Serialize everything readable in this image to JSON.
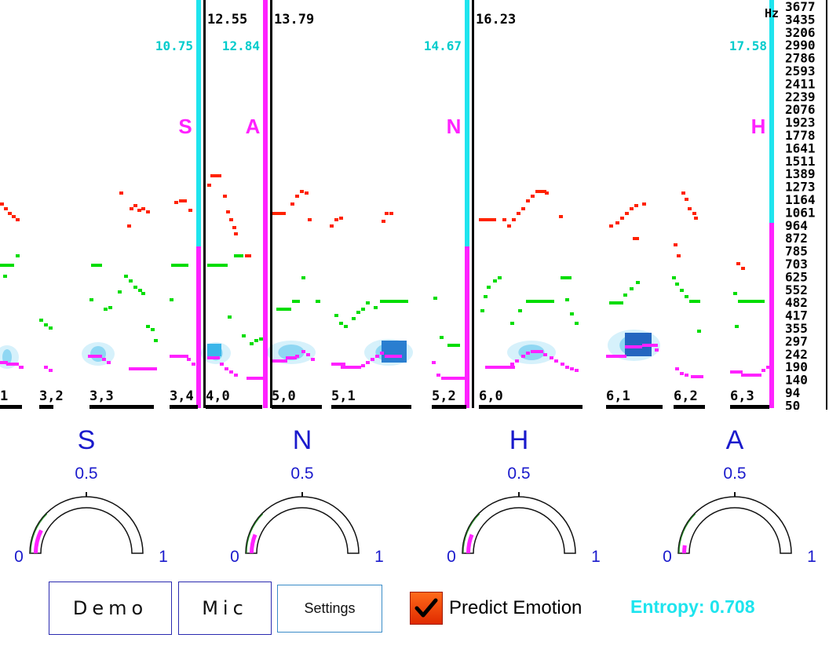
{
  "spectrogram": {
    "hz_label": "Hz",
    "freq_ticks": [
      "3677",
      "3435",
      "3206",
      "2990",
      "2786",
      "2593",
      "2411",
      "2239",
      "2076",
      "1923",
      "1778",
      "1641",
      "1511",
      "1389",
      "1273",
      "1164",
      "1061",
      "964",
      "872",
      "785",
      "703",
      "625",
      "552",
      "482",
      "417",
      "355",
      "297",
      "242",
      "190",
      "140",
      "94",
      "50"
    ],
    "time_markers_black": [
      "12.55",
      "13.79",
      "16.23"
    ],
    "time_markers_cyan": [
      "10.75",
      "12.84",
      "14.67",
      "17.58"
    ],
    "segment_emotions": [
      "S",
      "A",
      "N",
      "H"
    ],
    "syllable_labels": [
      "1",
      "3,2",
      "3,3",
      "3,4",
      "4,0",
      "5,0",
      "5,1",
      "5,2",
      "6,0",
      "6,1",
      "6,2",
      "6,3"
    ],
    "colors": {
      "formant_high": "#ff2200",
      "formant_mid": "#00dd00",
      "pitch": "#ff22ff",
      "cyan": "#00cccc",
      "energy": "#33b8ea"
    }
  },
  "gauges": [
    {
      "label": "S",
      "mid": "0.5",
      "min": "0",
      "max": "1",
      "value": 0.15
    },
    {
      "label": "N",
      "mid": "0.5",
      "min": "0",
      "max": "1",
      "value": 0.12
    },
    {
      "label": "H",
      "mid": "0.5",
      "min": "0",
      "max": "1",
      "value": 0.12
    },
    {
      "label": "A",
      "mid": "0.5",
      "min": "0",
      "max": "1",
      "value": 0.05
    }
  ],
  "controls": {
    "demo_label": "Demo",
    "mic_label": "Mic",
    "settings_label": "Settings",
    "predict_label": "Predict Emotion",
    "predict_checked": true
  },
  "entropy_text": "Entropy: 0.708",
  "colors": {
    "gauge_fill": "#ff22ff",
    "gauge_text": "#1a1acc",
    "accent_cyan": "#1ee4ee"
  }
}
